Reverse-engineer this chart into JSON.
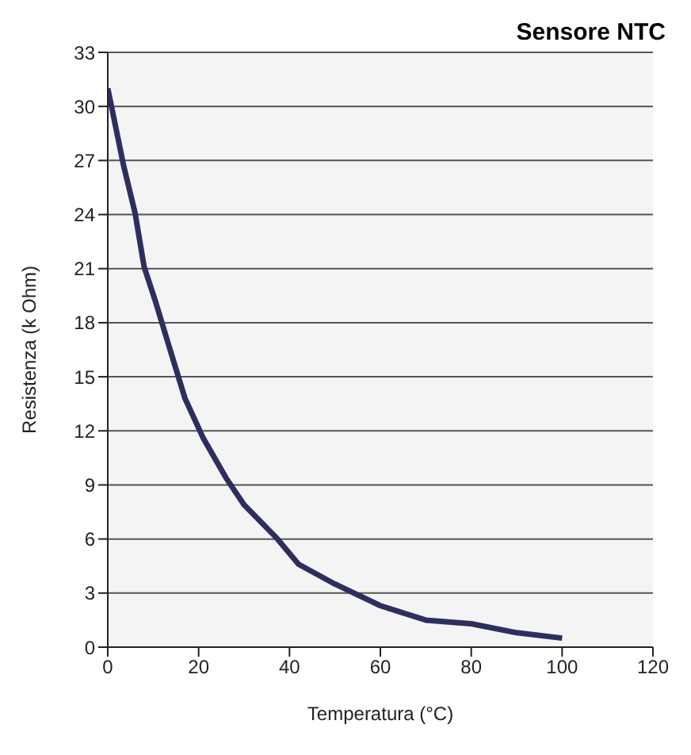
{
  "chart_data": {
    "type": "line",
    "title": "Sensore NTC",
    "xlabel": "Temperatura (°C)",
    "ylabel": "Resistenza (k Ohm)",
    "x": [
      0,
      3.5,
      6,
      8,
      10.6,
      13.6,
      17,
      21,
      26,
      30,
      37,
      42,
      50,
      60,
      70,
      80,
      90,
      100
    ],
    "series": [
      {
        "color": "#2e2e5e",
        "values": [
          31,
          26.7,
          24.1,
          21.1,
          19.1,
          16.6,
          13.8,
          11.6,
          9.4,
          7.9,
          6.1,
          4.6,
          3.5,
          2.3,
          1.5,
          1.3,
          0.8,
          0.5
        ]
      }
    ],
    "xlim": [
      0,
      120
    ],
    "xticks": [
      0,
      20,
      40,
      60,
      80,
      100,
      120
    ],
    "ylim": [
      0,
      33
    ],
    "yticks": [
      0,
      3,
      6,
      9,
      12,
      15,
      18,
      21,
      24,
      27,
      30,
      33
    ],
    "grid": "y",
    "marker": "none",
    "line_style": "solid"
  }
}
